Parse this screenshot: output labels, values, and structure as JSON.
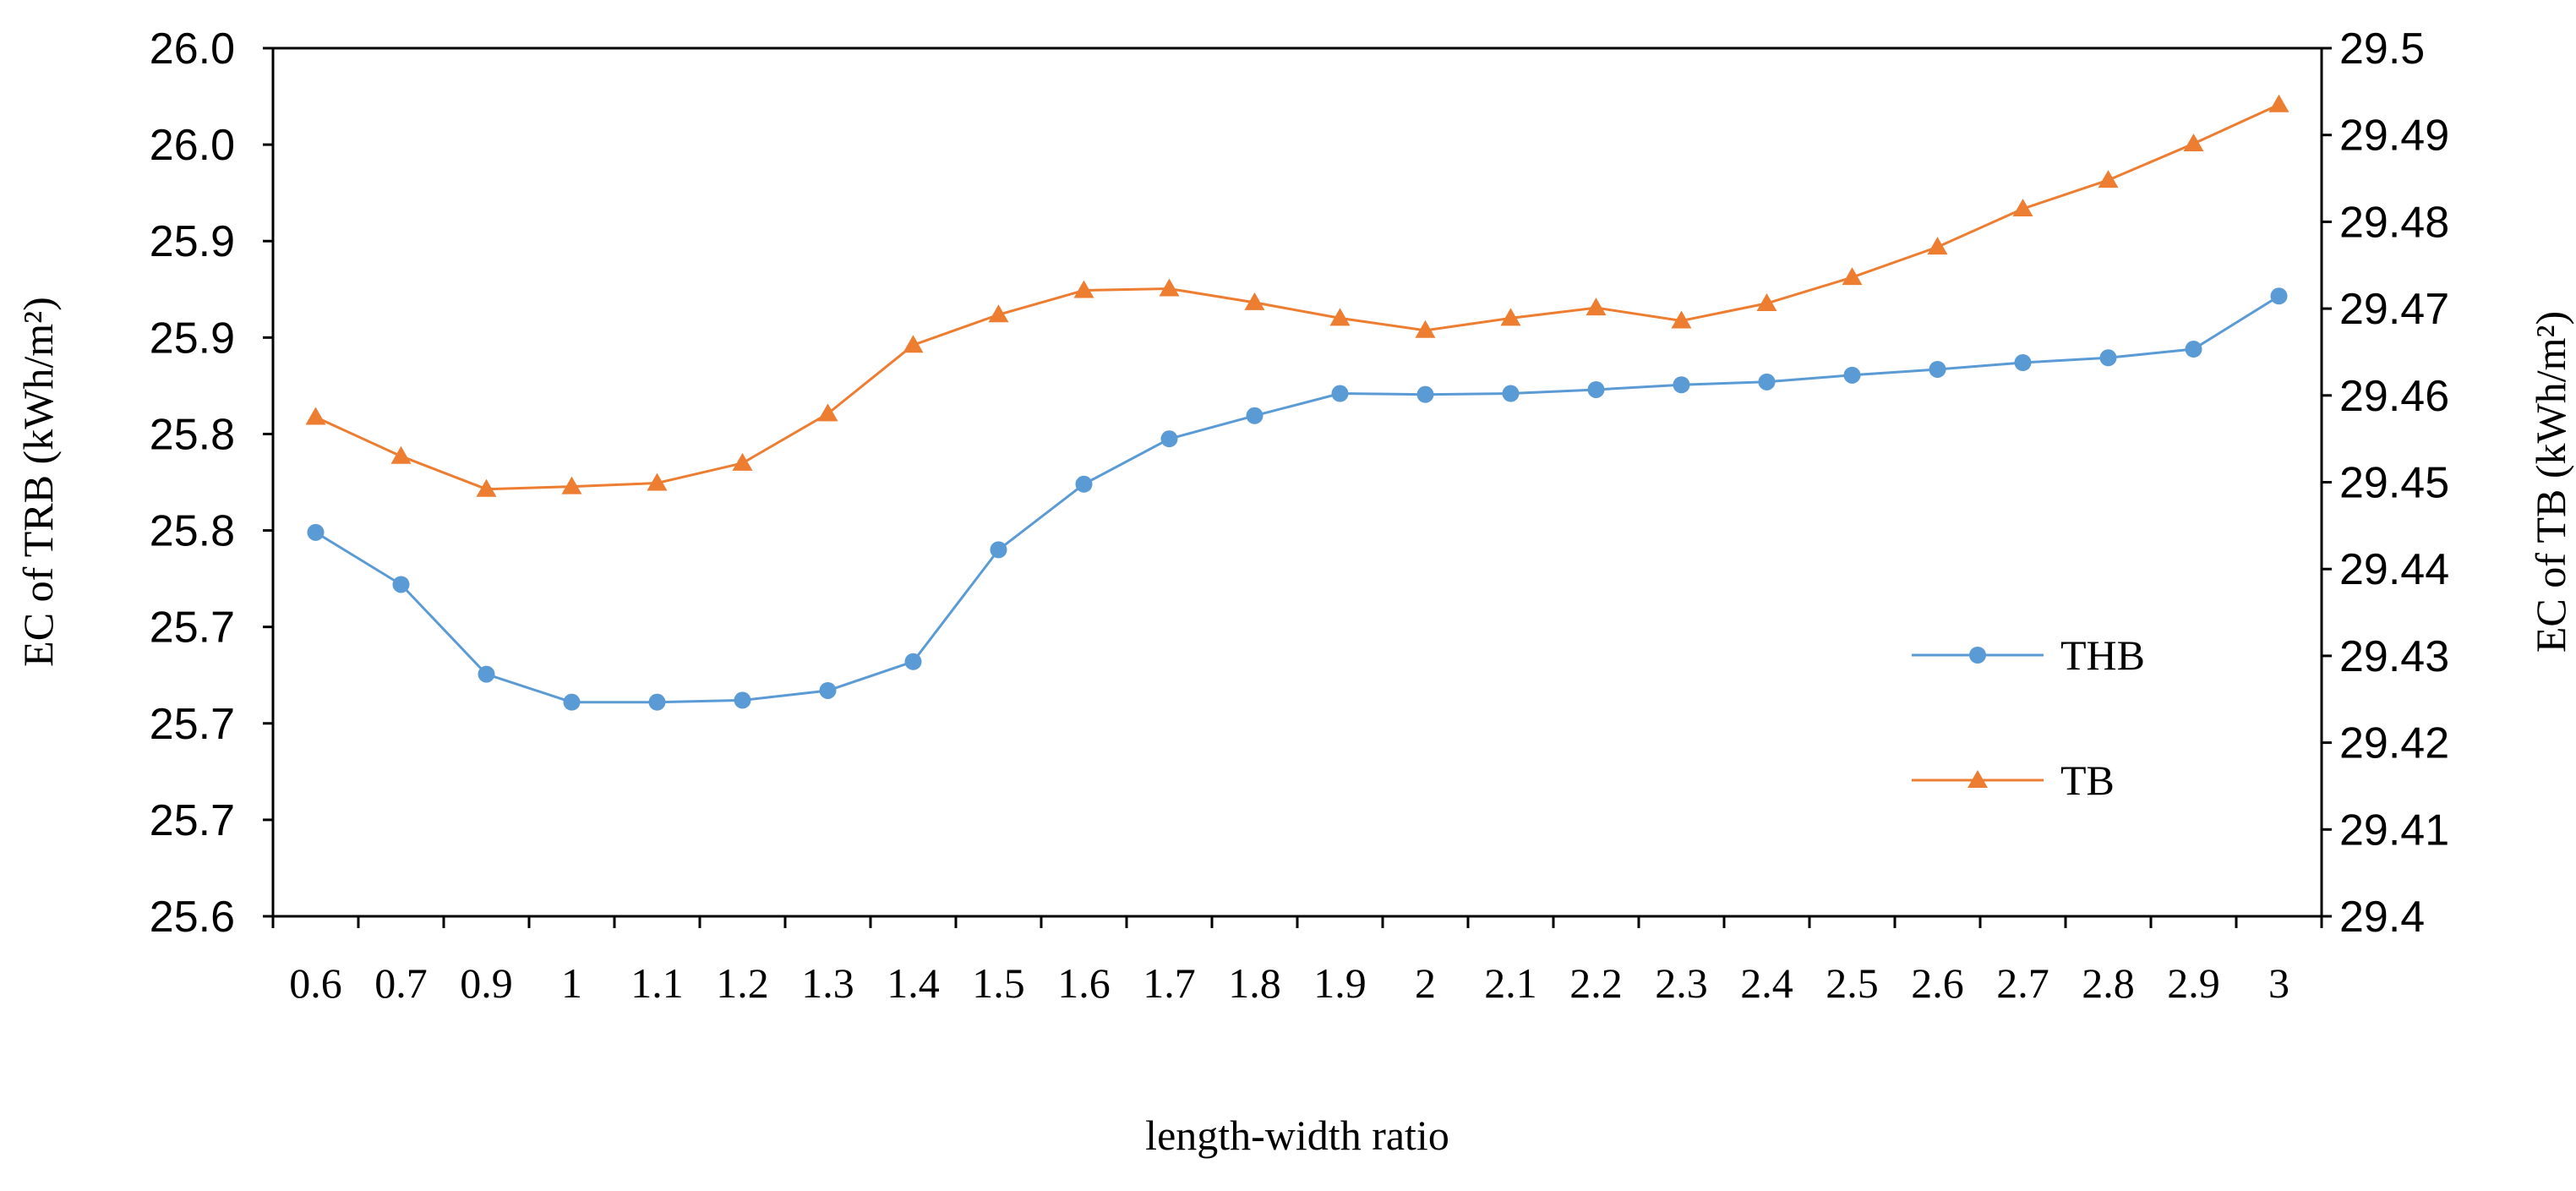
{
  "chart_data": {
    "type": "line",
    "xlabel": "length-width ratio",
    "ylabel_left": "EC of TRB  (kWh/m²)",
    "ylabel_right": "EC of TB  (kWh/m²)",
    "categories": [
      "0.6",
      "0.7",
      "0.9",
      "1",
      "1.1",
      "1.2",
      "1.3",
      "1.4",
      "1.5",
      "1.6",
      "1.7",
      "1.8",
      "1.9",
      "2",
      "2.1",
      "2.2",
      "2.3",
      "2.4",
      "2.5",
      "2.6",
      "2.7",
      "2.8",
      "2.9",
      "3"
    ],
    "ylim_left": [
      25.6,
      26.05
    ],
    "ylim_right": [
      29.4,
      29.5
    ],
    "left_tick_labels": [
      "25.6",
      "25.7",
      "25.7",
      "25.7",
      "25.8",
      "25.8",
      "25.9",
      "25.9",
      "26.0",
      "26.0"
    ],
    "right_tick_labels": [
      "29.4",
      "29.41",
      "29.42",
      "29.43",
      "29.44",
      "29.45",
      "29.46",
      "29.47",
      "29.48",
      "29.49",
      "29.5"
    ],
    "grid": false,
    "legend_position": "right",
    "series": [
      {
        "name": "THB",
        "axis": "left",
        "color": "#5B9BD5",
        "marker": "circle",
        "values": [
          25.799,
          25.772,
          25.7255,
          25.711,
          25.711,
          25.712,
          25.717,
          25.732,
          25.79,
          25.824,
          25.8475,
          25.8595,
          25.871,
          25.8705,
          25.871,
          25.873,
          25.8755,
          25.877,
          25.8805,
          25.8835,
          25.887,
          25.8895,
          25.894,
          25.9215
        ]
      },
      {
        "name": "TB",
        "axis": "right",
        "color": "#ED7D31",
        "marker": "triangle",
        "values": [
          29.4575,
          29.453,
          29.4492,
          29.4495,
          29.4499,
          29.4522,
          29.4579,
          29.4658,
          29.4693,
          29.4721,
          29.4723,
          29.4707,
          29.4689,
          29.4675,
          29.4689,
          29.4701,
          29.4686,
          29.4706,
          29.4736,
          29.4771,
          29.4815,
          29.4848,
          29.489,
          29.4935
        ]
      }
    ]
  }
}
